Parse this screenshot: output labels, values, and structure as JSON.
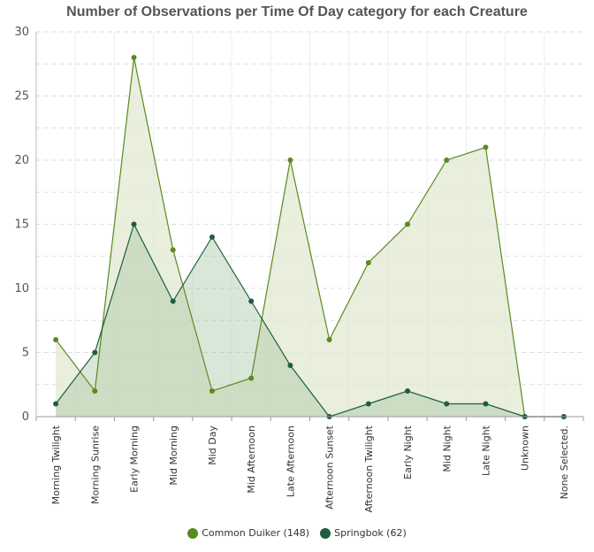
{
  "chart_data": {
    "type": "area",
    "title": "Number of Observations per Time Of Day category for each Creature",
    "xlabel": "",
    "ylabel": "",
    "ylim": [
      0,
      30
    ],
    "yticks": [
      "0",
      "5",
      "10",
      "15",
      "20",
      "25",
      "30"
    ],
    "categories": [
      "Morning Twilight",
      "Morning Sunrise",
      "Early Morning",
      "Mid Morning",
      "Mid Day",
      "Mid Afternoon",
      "Late Afternoon",
      "Afternoon Sunset",
      "Afternoon Twilight",
      "Early Night",
      "Mid Night",
      "Late Night",
      "Unknown",
      "None Selected."
    ],
    "series": [
      {
        "name": "Common Duiker (148)",
        "color": "#5a8a1e",
        "fill": "#dfe7cf",
        "values": [
          6,
          2,
          28,
          13,
          2,
          3,
          20,
          6,
          12,
          15,
          20,
          21,
          0,
          0
        ]
      },
      {
        "name": "Springbok (62)",
        "color": "#1e5e3c",
        "fill": "#9fc29f",
        "values": [
          1,
          5,
          15,
          9,
          14,
          9,
          4,
          0,
          1,
          2,
          1,
          1,
          0,
          0
        ]
      }
    ],
    "grid": true,
    "legend_position": "bottom-center"
  }
}
